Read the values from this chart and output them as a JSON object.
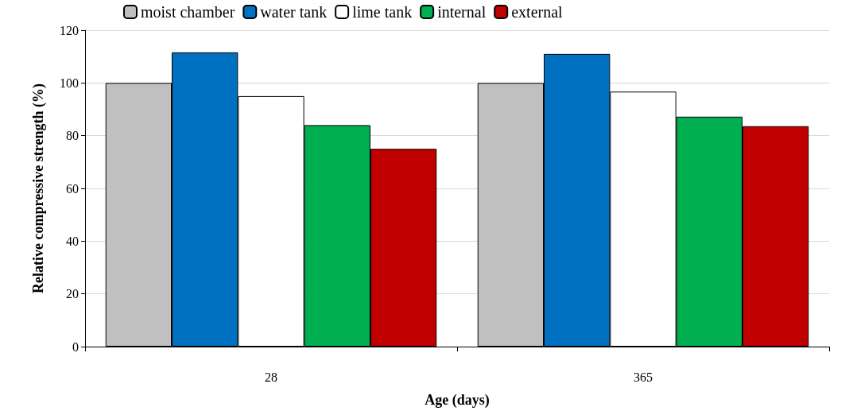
{
  "chart_data": {
    "type": "bar",
    "xlabel": "Age (days)",
    "ylabel": "Relative compressive strength (%)",
    "categories": [
      "28",
      "365"
    ],
    "series": [
      {
        "name": "moist chamber",
        "color": "#c0c0c0",
        "values": [
          100,
          100
        ]
      },
      {
        "name": "water tank",
        "color": "#0070c0",
        "values": [
          111.6,
          111
        ]
      },
      {
        "name": "lime tank",
        "color": "#ffffff",
        "values": [
          95,
          96.7
        ]
      },
      {
        "name": "internal",
        "color": "#00b050",
        "values": [
          84,
          87.2
        ]
      },
      {
        "name": "external",
        "color": "#c00000",
        "values": [
          75,
          83.6
        ]
      }
    ],
    "ylim": [
      0,
      120
    ],
    "yticks": [
      0,
      20,
      40,
      60,
      80,
      100,
      120
    ],
    "grid": "y",
    "legend": "top"
  }
}
